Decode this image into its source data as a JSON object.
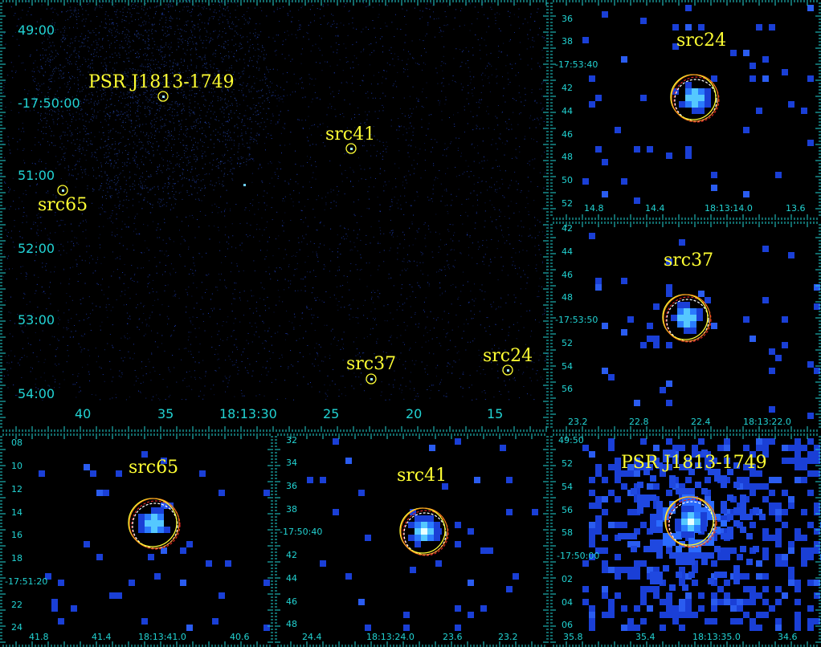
{
  "main": {
    "labels": {
      "psr": "PSR J1813-1749",
      "src41": "src41",
      "src65": "src65",
      "src37": "src37",
      "src24": "src24"
    },
    "y_ticks": [
      "49:00",
      "-17:50:00",
      "51:00",
      "52:00",
      "53:00",
      "54:00"
    ],
    "x_ticks": [
      "40",
      "35",
      "18:13:30",
      "25",
      "20",
      "15"
    ]
  },
  "src24": {
    "label": "src24",
    "y_ticks": [
      "36",
      "38",
      "-17:53:40",
      "42",
      "44",
      "46",
      "48",
      "50",
      "52"
    ],
    "x_ticks": [
      "14.8",
      "14.4",
      "18:13:14.0",
      "13.6"
    ]
  },
  "src37": {
    "label": "src37",
    "y_ticks": [
      "42",
      "44",
      "46",
      "48",
      "-17:53:50",
      "52",
      "54",
      "56"
    ],
    "x_ticks": [
      "23.2",
      "22.8",
      "22.4",
      "18:13:22.0"
    ]
  },
  "src65": {
    "label": "src65",
    "y_ticks": [
      "08",
      "10",
      "12",
      "14",
      "16",
      "18",
      "-17:51:20",
      "22",
      "24"
    ],
    "x_ticks": [
      "41.8",
      "41.4",
      "18:13:41.0",
      "40.6"
    ]
  },
  "src41": {
    "label": "src41",
    "y_ticks": [
      "32",
      "34",
      "36",
      "38",
      "-17:50:40",
      "42",
      "44",
      "46",
      "48"
    ],
    "x_ticks": [
      "24.4",
      "18:13:24.0",
      "23.6",
      "23.2"
    ]
  },
  "psr": {
    "label": "PSR J1813-1749",
    "y_ticks": [
      "49:50",
      "52",
      "54",
      "56",
      "58",
      "-17:50:00",
      "02",
      "04",
      "06"
    ],
    "x_ticks": [
      "35.8",
      "35.4",
      "18:13:35.0",
      "34.6"
    ]
  },
  "colors": {
    "background": "#000000",
    "tick": "#22d3d3",
    "label": "#ffff33",
    "region_yellow": "#ffff33",
    "region_red": "#dd2222",
    "region_white": "#ffffff",
    "region_orange": "#ff8c1a",
    "pixel_blue": "#1a3fd6"
  }
}
